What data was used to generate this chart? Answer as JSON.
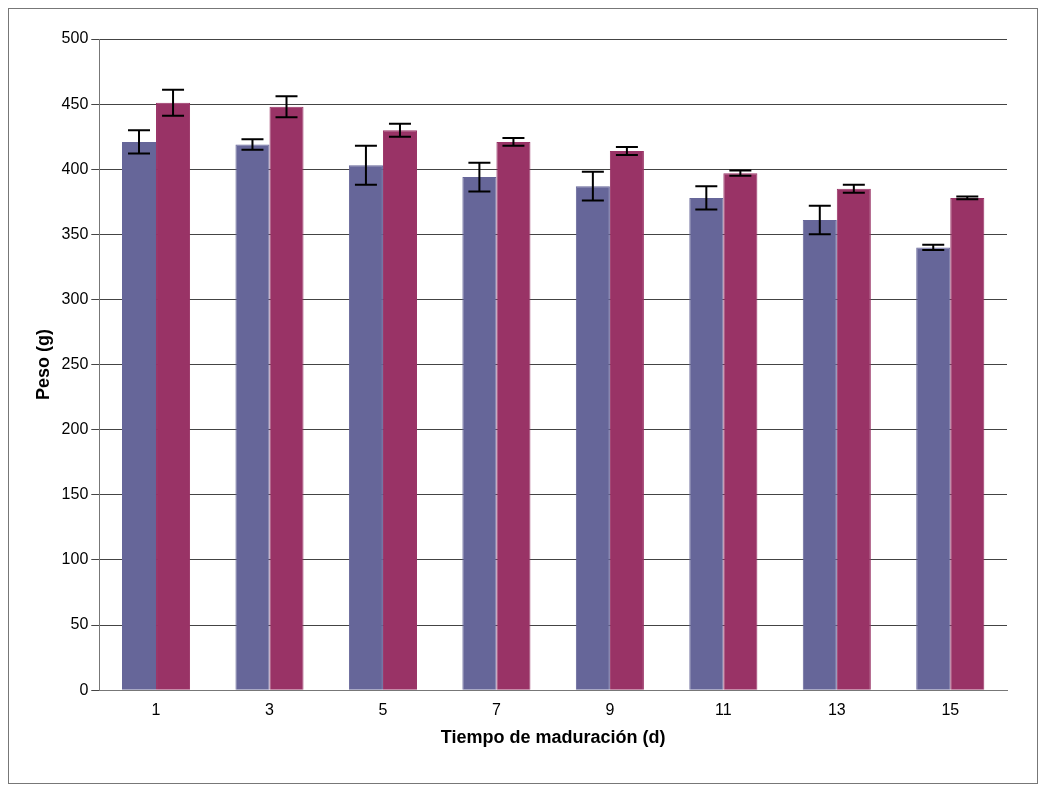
{
  "chart_data": {
    "type": "bar",
    "xlabel": "Tiempo de maduración (d)",
    "ylabel": "Peso (g)",
    "categories": [
      "1",
      "3",
      "5",
      "7",
      "9",
      "11",
      "13",
      "15"
    ],
    "series": [
      {
        "color": "#666699",
        "values": [
          421,
          419,
          403,
          394,
          387,
          378,
          361,
          340
        ],
        "errors": [
          9,
          4,
          15,
          11,
          11,
          9,
          11,
          2
        ]
      },
      {
        "color": "#993366",
        "values": [
          451,
          448,
          430,
          421,
          414,
          397,
          385,
          378
        ],
        "errors": [
          10,
          8,
          5,
          3,
          3,
          2,
          3,
          1
        ]
      }
    ],
    "ylim": [
      0,
      500
    ],
    "yticks": [
      0,
      50,
      100,
      150,
      200,
      250,
      300,
      350,
      400,
      450,
      500
    ],
    "grid": "y",
    "legend": false
  }
}
